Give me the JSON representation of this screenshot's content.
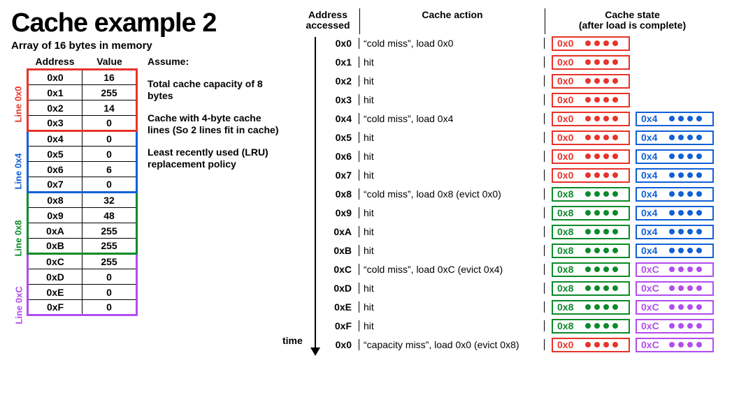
{
  "title": "Cache example 2",
  "title_fontsize": 38,
  "subhead": "Array of 16 bytes in memory",
  "subhead_fontsize": 15,
  "colors": {
    "red": "#e8332a",
    "blue": "#1060d6",
    "green": "#0a8a2a",
    "purple": "#b34cf0",
    "black": "#000000",
    "text": "#000000",
    "bg": "#ffffff"
  },
  "mem_table": {
    "col_headers": [
      "Address",
      "Value"
    ],
    "groups": [
      {
        "label": "Line 0x0",
        "color_key": "red",
        "rows": [
          [
            "0x0",
            "16"
          ],
          [
            "0x1",
            "255"
          ],
          [
            "0x2",
            "14"
          ],
          [
            "0x3",
            "0"
          ]
        ]
      },
      {
        "label": "Line 0x4",
        "color_key": "blue",
        "rows": [
          [
            "0x4",
            "0"
          ],
          [
            "0x5",
            "0"
          ],
          [
            "0x6",
            "6"
          ],
          [
            "0x7",
            "0"
          ]
        ]
      },
      {
        "label": "Line 0x8",
        "color_key": "green",
        "rows": [
          [
            "0x8",
            "32"
          ],
          [
            "0x9",
            "48"
          ],
          [
            "0xA",
            "255"
          ],
          [
            "0xB",
            "255"
          ]
        ]
      },
      {
        "label": "Line 0xC",
        "color_key": "purple",
        "rows": [
          [
            "0xC",
            "255"
          ],
          [
            "0xD",
            "0"
          ],
          [
            "0xE",
            "0"
          ],
          [
            "0xF",
            "0"
          ]
        ]
      }
    ]
  },
  "assume": {
    "heading": "Assume:",
    "lines": [
      "Total cache capacity of 8 bytes",
      "Cache with 4-byte cache lines (So 2 lines fit in cache)",
      "Least recently used (LRU) replacement policy"
    ]
  },
  "trace": {
    "headers": [
      "Address accessed",
      "Cache action",
      "Cache state\n(after load is complete)"
    ],
    "time_label": "time",
    "rows": [
      {
        "addr": "0x0",
        "action": "“cold miss”, load 0x0",
        "slots": [
          {
            "lbl": "0x0",
            "c": "red"
          }
        ]
      },
      {
        "addr": "0x1",
        "action": "hit",
        "slots": [
          {
            "lbl": "0x0",
            "c": "red"
          }
        ]
      },
      {
        "addr": "0x2",
        "action": "hit",
        "slots": [
          {
            "lbl": "0x0",
            "c": "red"
          }
        ]
      },
      {
        "addr": "0x3",
        "action": "hit",
        "slots": [
          {
            "lbl": "0x0",
            "c": "red"
          }
        ]
      },
      {
        "addr": "0x4",
        "action": "“cold miss”, load 0x4",
        "slots": [
          {
            "lbl": "0x0",
            "c": "red"
          },
          {
            "lbl": "0x4",
            "c": "blue"
          }
        ]
      },
      {
        "addr": "0x5",
        "action": "hit",
        "slots": [
          {
            "lbl": "0x0",
            "c": "red"
          },
          {
            "lbl": "0x4",
            "c": "blue"
          }
        ]
      },
      {
        "addr": "0x6",
        "action": "hit",
        "slots": [
          {
            "lbl": "0x0",
            "c": "red"
          },
          {
            "lbl": "0x4",
            "c": "blue"
          }
        ]
      },
      {
        "addr": "0x7",
        "action": "hit",
        "slots": [
          {
            "lbl": "0x0",
            "c": "red"
          },
          {
            "lbl": "0x4",
            "c": "blue"
          }
        ]
      },
      {
        "addr": "0x8",
        "action": "“cold miss”, load 0x8 (evict 0x0)",
        "slots": [
          {
            "lbl": "0x8",
            "c": "green"
          },
          {
            "lbl": "0x4",
            "c": "blue"
          }
        ]
      },
      {
        "addr": "0x9",
        "action": "hit",
        "slots": [
          {
            "lbl": "0x8",
            "c": "green"
          },
          {
            "lbl": "0x4",
            "c": "blue"
          }
        ]
      },
      {
        "addr": "0xA",
        "action": "hit",
        "slots": [
          {
            "lbl": "0x8",
            "c": "green"
          },
          {
            "lbl": "0x4",
            "c": "blue"
          }
        ]
      },
      {
        "addr": "0xB",
        "action": "hit",
        "slots": [
          {
            "lbl": "0x8",
            "c": "green"
          },
          {
            "lbl": "0x4",
            "c": "blue"
          }
        ]
      },
      {
        "addr": "0xC",
        "action": "“cold miss”, load 0xC (evict 0x4)",
        "slots": [
          {
            "lbl": "0x8",
            "c": "green"
          },
          {
            "lbl": "0xC",
            "c": "purple"
          }
        ]
      },
      {
        "addr": "0xD",
        "action": "hit",
        "slots": [
          {
            "lbl": "0x8",
            "c": "green"
          },
          {
            "lbl": "0xC",
            "c": "purple"
          }
        ]
      },
      {
        "addr": "0xE",
        "action": "hit",
        "slots": [
          {
            "lbl": "0x8",
            "c": "green"
          },
          {
            "lbl": "0xC",
            "c": "purple"
          }
        ]
      },
      {
        "addr": "0xF",
        "action": "hit",
        "slots": [
          {
            "lbl": "0x8",
            "c": "green"
          },
          {
            "lbl": "0xC",
            "c": "purple"
          }
        ]
      },
      {
        "addr": "0x0",
        "action": "“capacity miss”, load 0x0 (evict 0x8)",
        "slots": [
          {
            "lbl": "0x0",
            "c": "red"
          },
          {
            "lbl": "0xC",
            "c": "purple"
          }
        ]
      }
    ]
  }
}
